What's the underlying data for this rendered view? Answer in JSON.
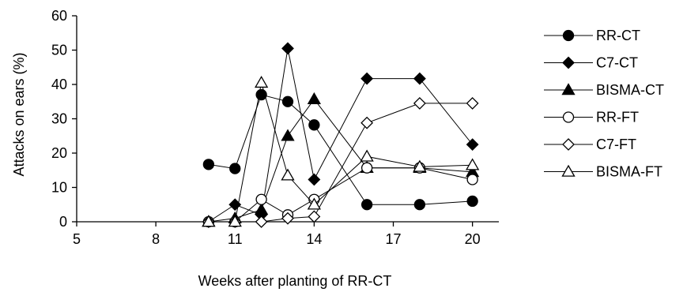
{
  "chart_data": {
    "type": "line",
    "title": "",
    "xlabel": "Weeks after planting of RR-CT",
    "ylabel": "Attacks on ears (%)",
    "xlim": [
      5,
      21
    ],
    "ylim": [
      0,
      60
    ],
    "xticks": [
      5,
      8,
      11,
      14,
      17,
      20
    ],
    "yticks": [
      0,
      10,
      20,
      30,
      40,
      50,
      60
    ],
    "grid": false,
    "legend_position": "right",
    "series": [
      {
        "name": "RR-CT",
        "marker": "circle",
        "fill": "filled",
        "x": [
          10,
          11,
          12,
          13,
          14,
          16,
          18,
          20
        ],
        "y": [
          16.7,
          15.5,
          37,
          35,
          28.2,
          5,
          5,
          6
        ]
      },
      {
        "name": "C7-CT",
        "marker": "diamond",
        "fill": "filled",
        "x": [
          10,
          11,
          12,
          13,
          14,
          16,
          18,
          20
        ],
        "y": [
          0,
          5,
          2,
          50.5,
          12.3,
          41.7,
          41.7,
          22.5
        ]
      },
      {
        "name": "BISMA-CT",
        "marker": "triangle",
        "fill": "filled",
        "x": [
          10,
          11,
          12,
          13,
          14,
          16,
          18,
          20
        ],
        "y": [
          0,
          1,
          3.5,
          25,
          35.7,
          15.7,
          15.7,
          14.5
        ]
      },
      {
        "name": "RR-FT",
        "marker": "circle",
        "fill": "open",
        "x": [
          10,
          11,
          12,
          13,
          14,
          16,
          18,
          20
        ],
        "y": [
          0,
          0,
          6.5,
          2,
          6.5,
          15.7,
          15.7,
          12.3
        ]
      },
      {
        "name": "C7-FT",
        "marker": "diamond",
        "fill": "open",
        "x": [
          10,
          11,
          12,
          13,
          14,
          16,
          18,
          20
        ],
        "y": [
          0,
          0,
          0,
          1,
          1.5,
          28.8,
          34.5,
          34.5
        ]
      },
      {
        "name": "BISMA-FT",
        "marker": "triangle",
        "fill": "open",
        "x": [
          10,
          11,
          12,
          13,
          14,
          16,
          18,
          20
        ],
        "y": [
          0,
          0,
          40.5,
          13.5,
          5,
          19,
          16,
          16.5
        ]
      }
    ]
  }
}
